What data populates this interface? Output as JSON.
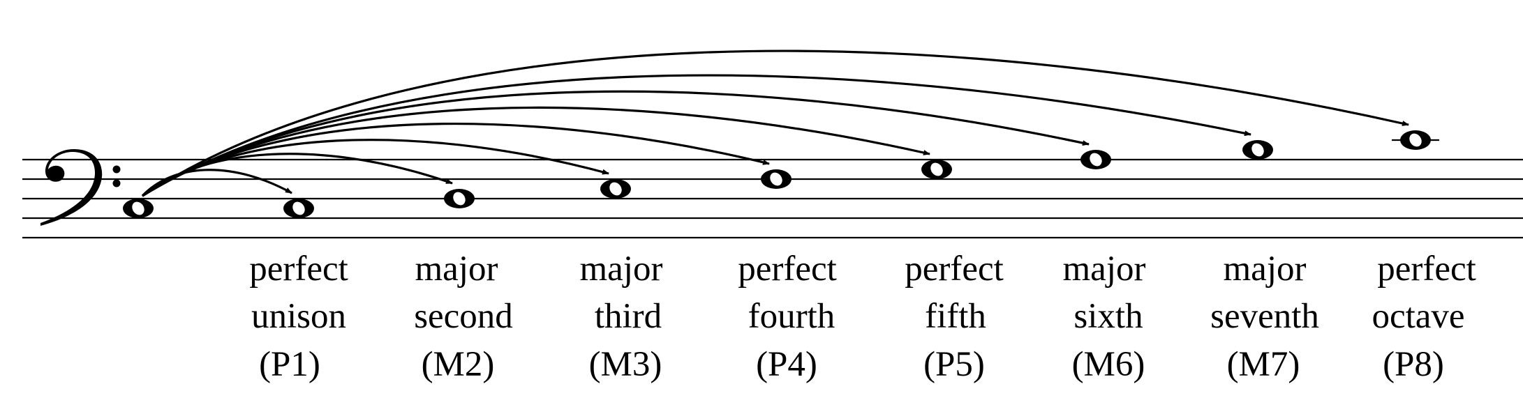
{
  "diagram": {
    "clef": "bass-clef",
    "staff_lines": 5,
    "start_note": "C3",
    "intervals": [
      {
        "name_line1": "perfect",
        "name_line2": "unison",
        "abbr": "(P1)",
        "target_note": "C3"
      },
      {
        "name_line1": "major",
        "name_line2": "second",
        "abbr": "(M2)",
        "target_note": "D3"
      },
      {
        "name_line1": "major",
        "name_line2": "third",
        "abbr": "(M3)",
        "target_note": "E3"
      },
      {
        "name_line1": "perfect",
        "name_line2": "fourth",
        "abbr": "(P4)",
        "target_note": "F3"
      },
      {
        "name_line1": "perfect",
        "name_line2": "fifth",
        "abbr": "(P5)",
        "target_note": "G3"
      },
      {
        "name_line1": "major",
        "name_line2": "sixth",
        "abbr": "(M6)",
        "target_note": "A3"
      },
      {
        "name_line1": "major",
        "name_line2": "seventh",
        "abbr": "(M7)",
        "target_note": "B3"
      },
      {
        "name_line1": "perfect",
        "name_line2": "octave",
        "abbr": "(P8)",
        "target_note": "C4"
      }
    ]
  }
}
